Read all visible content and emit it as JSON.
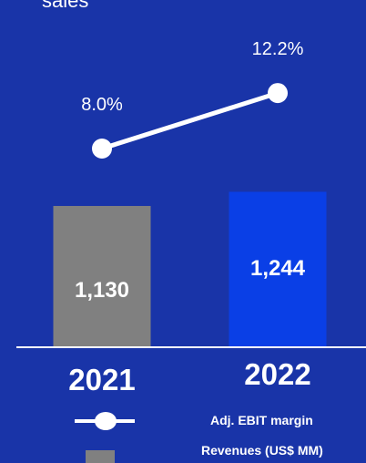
{
  "header": {
    "subtitle_fragment": "sales"
  },
  "legend": {
    "line_label": "Adj. EBIT margin",
    "bar_label": "Revenues (US$ MM)"
  },
  "colors": {
    "background": "#1934a8",
    "bar_2021": "#808080",
    "bar_2022": "#0a3fe6",
    "line": "#ffffff",
    "text": "#ffffff"
  },
  "chart_data": {
    "type": "bar",
    "categories": [
      "2021",
      "2022"
    ],
    "series": [
      {
        "name": "Revenues (US$ MM)",
        "type": "bar",
        "values": [
          1130,
          1244
        ],
        "labels": [
          "1,130",
          "1,244"
        ]
      },
      {
        "name": "Adj. EBIT margin",
        "type": "line",
        "values": [
          8.0,
          12.2
        ],
        "labels": [
          "8.0%",
          "12.2%"
        ]
      }
    ],
    "legend_position": "bottom-right",
    "grid": false
  }
}
